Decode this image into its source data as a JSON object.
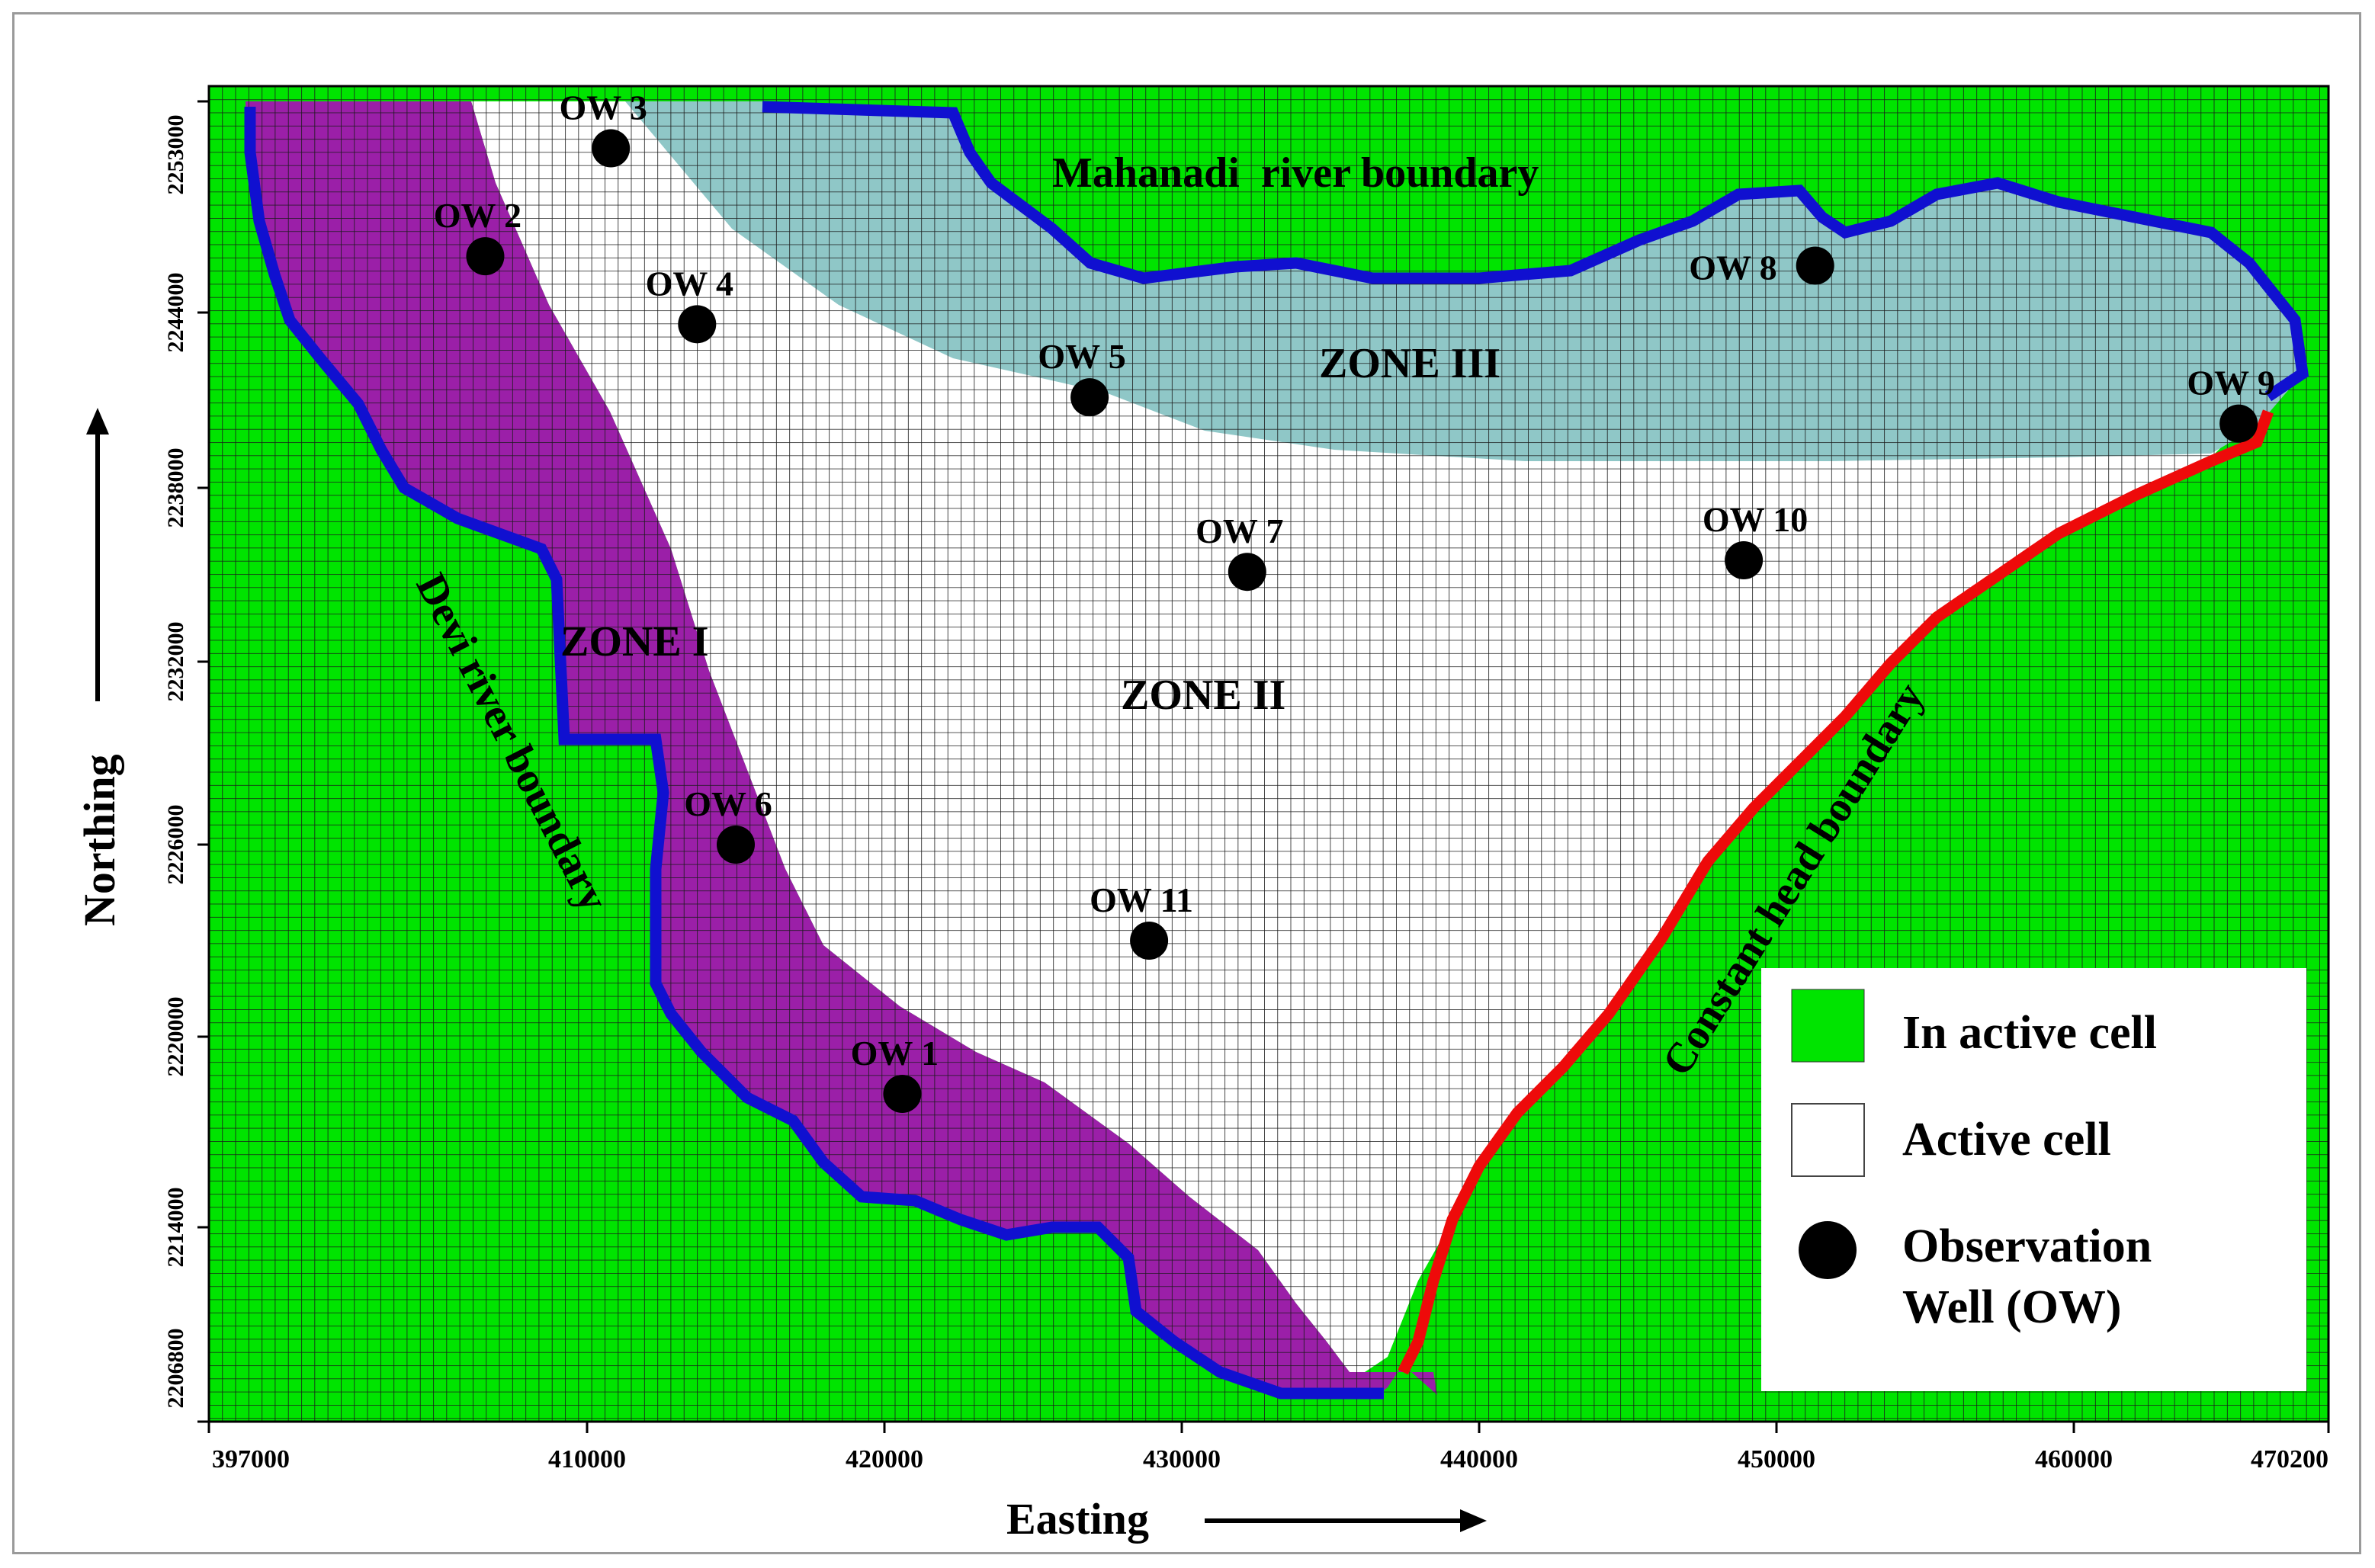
{
  "axes": {
    "x_title": "Easting",
    "y_title": "Northing",
    "x_ticks": [
      "397000",
      "410000",
      "420000",
      "430000",
      "440000",
      "450000",
      "460000",
      "470200"
    ],
    "y_ticks": [
      "2253000",
      "2244000",
      "2238000",
      "2232000",
      "2226000",
      "2220000",
      "2214000",
      "2206800"
    ]
  },
  "zones": [
    {
      "name": "ZONE I",
      "color": "#9b1fa8"
    },
    {
      "name": "ZONE II",
      "color": "#ffffff"
    },
    {
      "name": "ZONE III",
      "color": "#8fc7c7"
    }
  ],
  "boundaries": [
    {
      "name": "Mahanadi  river boundary",
      "color": "#1010d0"
    },
    {
      "name": "Devi river boundary",
      "color": "#1010d0"
    },
    {
      "name": "Constant head boundary",
      "color": "#ee0a0a"
    }
  ],
  "wells": [
    {
      "name": "OW 1",
      "easting": 420600,
      "northing": 2218200
    },
    {
      "name": "OW 2",
      "easting": 406500,
      "northing": 2246400
    },
    {
      "name": "OW 3",
      "easting": 410800,
      "northing": 2251000
    },
    {
      "name": "OW 4",
      "easting": 413700,
      "northing": 2243600
    },
    {
      "name": "OW 5",
      "easting": 426900,
      "northing": 2241100
    },
    {
      "name": "OW 6",
      "easting": 415000,
      "northing": 2226000
    },
    {
      "name": "OW 7",
      "easting": 432200,
      "northing": 2235100
    },
    {
      "name": "OW 8",
      "easting": 451300,
      "northing": 2246000
    },
    {
      "name": "OW 9",
      "easting": 466600,
      "northing": 2240200
    },
    {
      "name": "OW 10",
      "easting": 448900,
      "northing": 2235500
    },
    {
      "name": "OW 11",
      "easting": 428900,
      "northing": 2223000
    }
  ],
  "legend": {
    "items": [
      {
        "label": "In active cell",
        "color": "#00e400"
      },
      {
        "label": "Active cell",
        "color": "#ffffff"
      },
      {
        "label_line1": "Observation",
        "label_line2": "Well (OW)",
        "color": "#000000"
      }
    ]
  },
  "colors": {
    "inactive": "#00e400",
    "grid": "#1a1a1a",
    "river": "#1010d0",
    "constant_head": "#ee0a0a"
  }
}
